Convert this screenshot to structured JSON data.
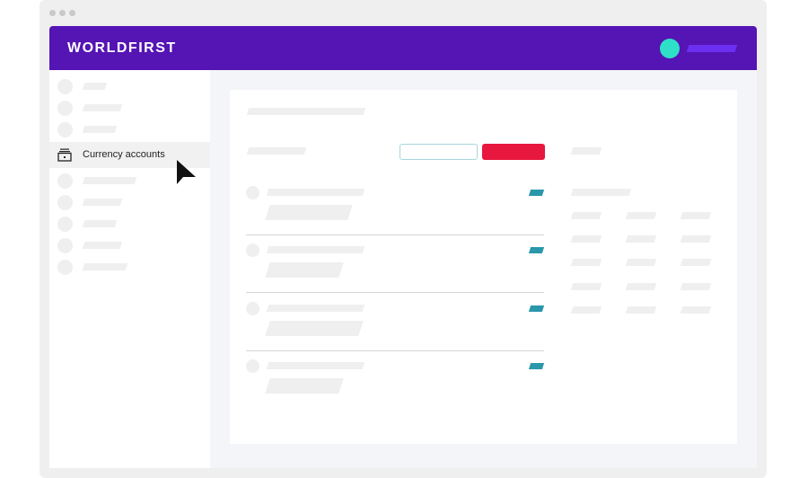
{
  "app": {
    "logo": "WORLDFIRST",
    "brand_color": "#5514b4",
    "avatar_color": "#2ee0c8"
  },
  "sidebar": {
    "active_item": {
      "label": "Currency accounts",
      "icon": "bank-icon"
    }
  },
  "buttons": {
    "secondary_color": "#a9d5de",
    "primary_color": "#e8173e"
  },
  "list": {
    "tag_color": "#2a97ab"
  }
}
